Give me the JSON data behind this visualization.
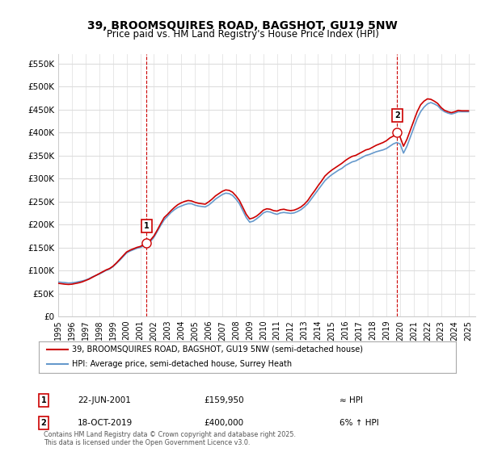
{
  "title": "39, BROOMSQUIRES ROAD, BAGSHOT, GU19 5NW",
  "subtitle": "Price paid vs. HM Land Registry's House Price Index (HPI)",
  "ylabel_ticks": [
    "£0",
    "£50K",
    "£100K",
    "£150K",
    "£200K",
    "£250K",
    "£300K",
    "£350K",
    "£400K",
    "£450K",
    "£500K",
    "£550K"
  ],
  "ytick_values": [
    0,
    50000,
    100000,
    150000,
    200000,
    250000,
    300000,
    350000,
    400000,
    450000,
    500000,
    550000
  ],
  "ylim": [
    0,
    570000
  ],
  "xlim_start": 1995.0,
  "xlim_end": 2025.5,
  "line_color_red": "#cc0000",
  "line_color_blue": "#6699cc",
  "bg_color": "#ffffff",
  "grid_color": "#dddddd",
  "marker1_year": 2001.47,
  "marker1_value": 159950,
  "marker1_label": "1",
  "marker2_year": 2019.79,
  "marker2_value": 400000,
  "marker2_label": "2",
  "legend_line1": "39, BROOMSQUIRES ROAD, BAGSHOT, GU19 5NW (semi-detached house)",
  "legend_line2": "HPI: Average price, semi-detached house, Surrey Heath",
  "annotation1_date": "22-JUN-2001",
  "annotation1_price": "£159,950",
  "annotation1_hpi": "≈ HPI",
  "annotation2_date": "18-OCT-2019",
  "annotation2_price": "£400,000",
  "annotation2_hpi": "6% ↑ HPI",
  "footer": "Contains HM Land Registry data © Crown copyright and database right 2025.\nThis data is licensed under the Open Government Licence v3.0.",
  "hpi_data_x": [
    1995.0,
    1995.25,
    1995.5,
    1995.75,
    1996.0,
    1996.25,
    1996.5,
    1996.75,
    1997.0,
    1997.25,
    1997.5,
    1997.75,
    1998.0,
    1998.25,
    1998.5,
    1998.75,
    1999.0,
    1999.25,
    1999.5,
    1999.75,
    2000.0,
    2000.25,
    2000.5,
    2000.75,
    2001.0,
    2001.25,
    2001.5,
    2001.75,
    2002.0,
    2002.25,
    2002.5,
    2002.75,
    2003.0,
    2003.25,
    2003.5,
    2003.75,
    2004.0,
    2004.25,
    2004.5,
    2004.75,
    2005.0,
    2005.25,
    2005.5,
    2005.75,
    2006.0,
    2006.25,
    2006.5,
    2006.75,
    2007.0,
    2007.25,
    2007.5,
    2007.75,
    2008.0,
    2008.25,
    2008.5,
    2008.75,
    2009.0,
    2009.25,
    2009.5,
    2009.75,
    2010.0,
    2010.25,
    2010.5,
    2010.75,
    2011.0,
    2011.25,
    2011.5,
    2011.75,
    2012.0,
    2012.25,
    2012.5,
    2012.75,
    2013.0,
    2013.25,
    2013.5,
    2013.75,
    2014.0,
    2014.25,
    2014.5,
    2014.75,
    2015.0,
    2015.25,
    2015.5,
    2015.75,
    2016.0,
    2016.25,
    2016.5,
    2016.75,
    2017.0,
    2017.25,
    2017.5,
    2017.75,
    2018.0,
    2018.25,
    2018.5,
    2018.75,
    2019.0,
    2019.25,
    2019.5,
    2019.75,
    2020.0,
    2020.25,
    2020.5,
    2020.75,
    2021.0,
    2021.25,
    2021.5,
    2021.75,
    2022.0,
    2022.25,
    2022.5,
    2022.75,
    2023.0,
    2023.25,
    2023.5,
    2023.75,
    2024.0,
    2024.25,
    2024.5,
    2024.75,
    2025.0
  ],
  "hpi_data_y": [
    75000,
    74000,
    73500,
    72500,
    73000,
    74000,
    75500,
    77000,
    79000,
    82000,
    86000,
    89000,
    92000,
    96000,
    100000,
    103000,
    108000,
    115000,
    122000,
    130000,
    138000,
    142000,
    145000,
    148000,
    150000,
    153000,
    158000,
    163000,
    172000,
    185000,
    198000,
    210000,
    218000,
    226000,
    232000,
    237000,
    240000,
    243000,
    245000,
    245000,
    242000,
    240000,
    239000,
    238000,
    242000,
    248000,
    255000,
    260000,
    265000,
    268000,
    267000,
    263000,
    255000,
    245000,
    230000,
    215000,
    205000,
    207000,
    212000,
    218000,
    225000,
    228000,
    227000,
    224000,
    222000,
    225000,
    226000,
    225000,
    224000,
    225000,
    228000,
    232000,
    238000,
    245000,
    255000,
    265000,
    275000,
    285000,
    295000,
    302000,
    308000,
    313000,
    318000,
    322000,
    328000,
    332000,
    336000,
    338000,
    342000,
    346000,
    350000,
    352000,
    355000,
    358000,
    360000,
    362000,
    365000,
    370000,
    375000,
    378000,
    375000,
    355000,
    370000,
    390000,
    410000,
    430000,
    445000,
    455000,
    462000,
    465000,
    462000,
    458000,
    450000,
    445000,
    442000,
    440000,
    442000,
    445000,
    445000,
    445000,
    445000
  ],
  "price_data_x": [
    1995.0,
    1995.25,
    1995.5,
    1995.75,
    1996.0,
    1996.25,
    1996.5,
    1996.75,
    1997.0,
    1997.25,
    1997.5,
    1997.75,
    1998.0,
    1998.25,
    1998.5,
    1998.75,
    1999.0,
    1999.25,
    1999.5,
    1999.75,
    2000.0,
    2000.25,
    2000.5,
    2000.75,
    2001.0,
    2001.25,
    2001.5,
    2001.75,
    2002.0,
    2002.25,
    2002.5,
    2002.75,
    2003.0,
    2003.25,
    2003.5,
    2003.75,
    2004.0,
    2004.25,
    2004.5,
    2004.75,
    2005.0,
    2005.25,
    2005.5,
    2005.75,
    2006.0,
    2006.25,
    2006.5,
    2006.75,
    2007.0,
    2007.25,
    2007.5,
    2007.75,
    2008.0,
    2008.25,
    2008.5,
    2008.75,
    2009.0,
    2009.25,
    2009.5,
    2009.75,
    2010.0,
    2010.25,
    2010.5,
    2010.75,
    2011.0,
    2011.25,
    2011.5,
    2011.75,
    2012.0,
    2012.25,
    2012.5,
    2012.75,
    2013.0,
    2013.25,
    2013.5,
    2013.75,
    2014.0,
    2014.25,
    2014.5,
    2014.75,
    2015.0,
    2015.25,
    2015.5,
    2015.75,
    2016.0,
    2016.25,
    2016.5,
    2016.75,
    2017.0,
    2017.25,
    2017.5,
    2017.75,
    2018.0,
    2018.25,
    2018.5,
    2018.75,
    2019.0,
    2019.25,
    2019.5,
    2019.75,
    2020.0,
    2020.25,
    2020.5,
    2020.75,
    2021.0,
    2021.25,
    2021.5,
    2021.75,
    2022.0,
    2022.25,
    2022.5,
    2022.75,
    2023.0,
    2023.25,
    2023.5,
    2023.75,
    2024.0,
    2024.25,
    2024.5,
    2024.75,
    2025.0
  ],
  "price_data_y": [
    72000,
    71000,
    70000,
    69500,
    70000,
    71500,
    73000,
    75000,
    78000,
    81000,
    85000,
    89000,
    93000,
    97000,
    101000,
    104000,
    109000,
    116000,
    124000,
    132000,
    140000,
    144000,
    147000,
    150000,
    152000,
    156000,
    161000,
    166000,
    175000,
    188000,
    202000,
    215000,
    222000,
    230000,
    237000,
    243000,
    247000,
    250000,
    252000,
    251000,
    248000,
    246000,
    245000,
    244000,
    249000,
    255000,
    262000,
    267000,
    272000,
    275000,
    274000,
    270000,
    262000,
    252000,
    237000,
    222000,
    212000,
    214000,
    218000,
    224000,
    231000,
    234000,
    233000,
    230000,
    229000,
    232000,
    233000,
    231000,
    230000,
    231000,
    234000,
    238000,
    244000,
    252000,
    263000,
    273000,
    284000,
    294000,
    305000,
    312000,
    318000,
    323000,
    328000,
    333000,
    339000,
    344000,
    348000,
    350000,
    354000,
    358000,
    362000,
    364000,
    368000,
    372000,
    375000,
    378000,
    382000,
    388000,
    392000,
    395000,
    390000,
    370000,
    385000,
    405000,
    425000,
    445000,
    460000,
    468000,
    473000,
    472000,
    468000,
    463000,
    454000,
    448000,
    445000,
    443000,
    445000,
    448000,
    447000,
    447000,
    447000
  ]
}
